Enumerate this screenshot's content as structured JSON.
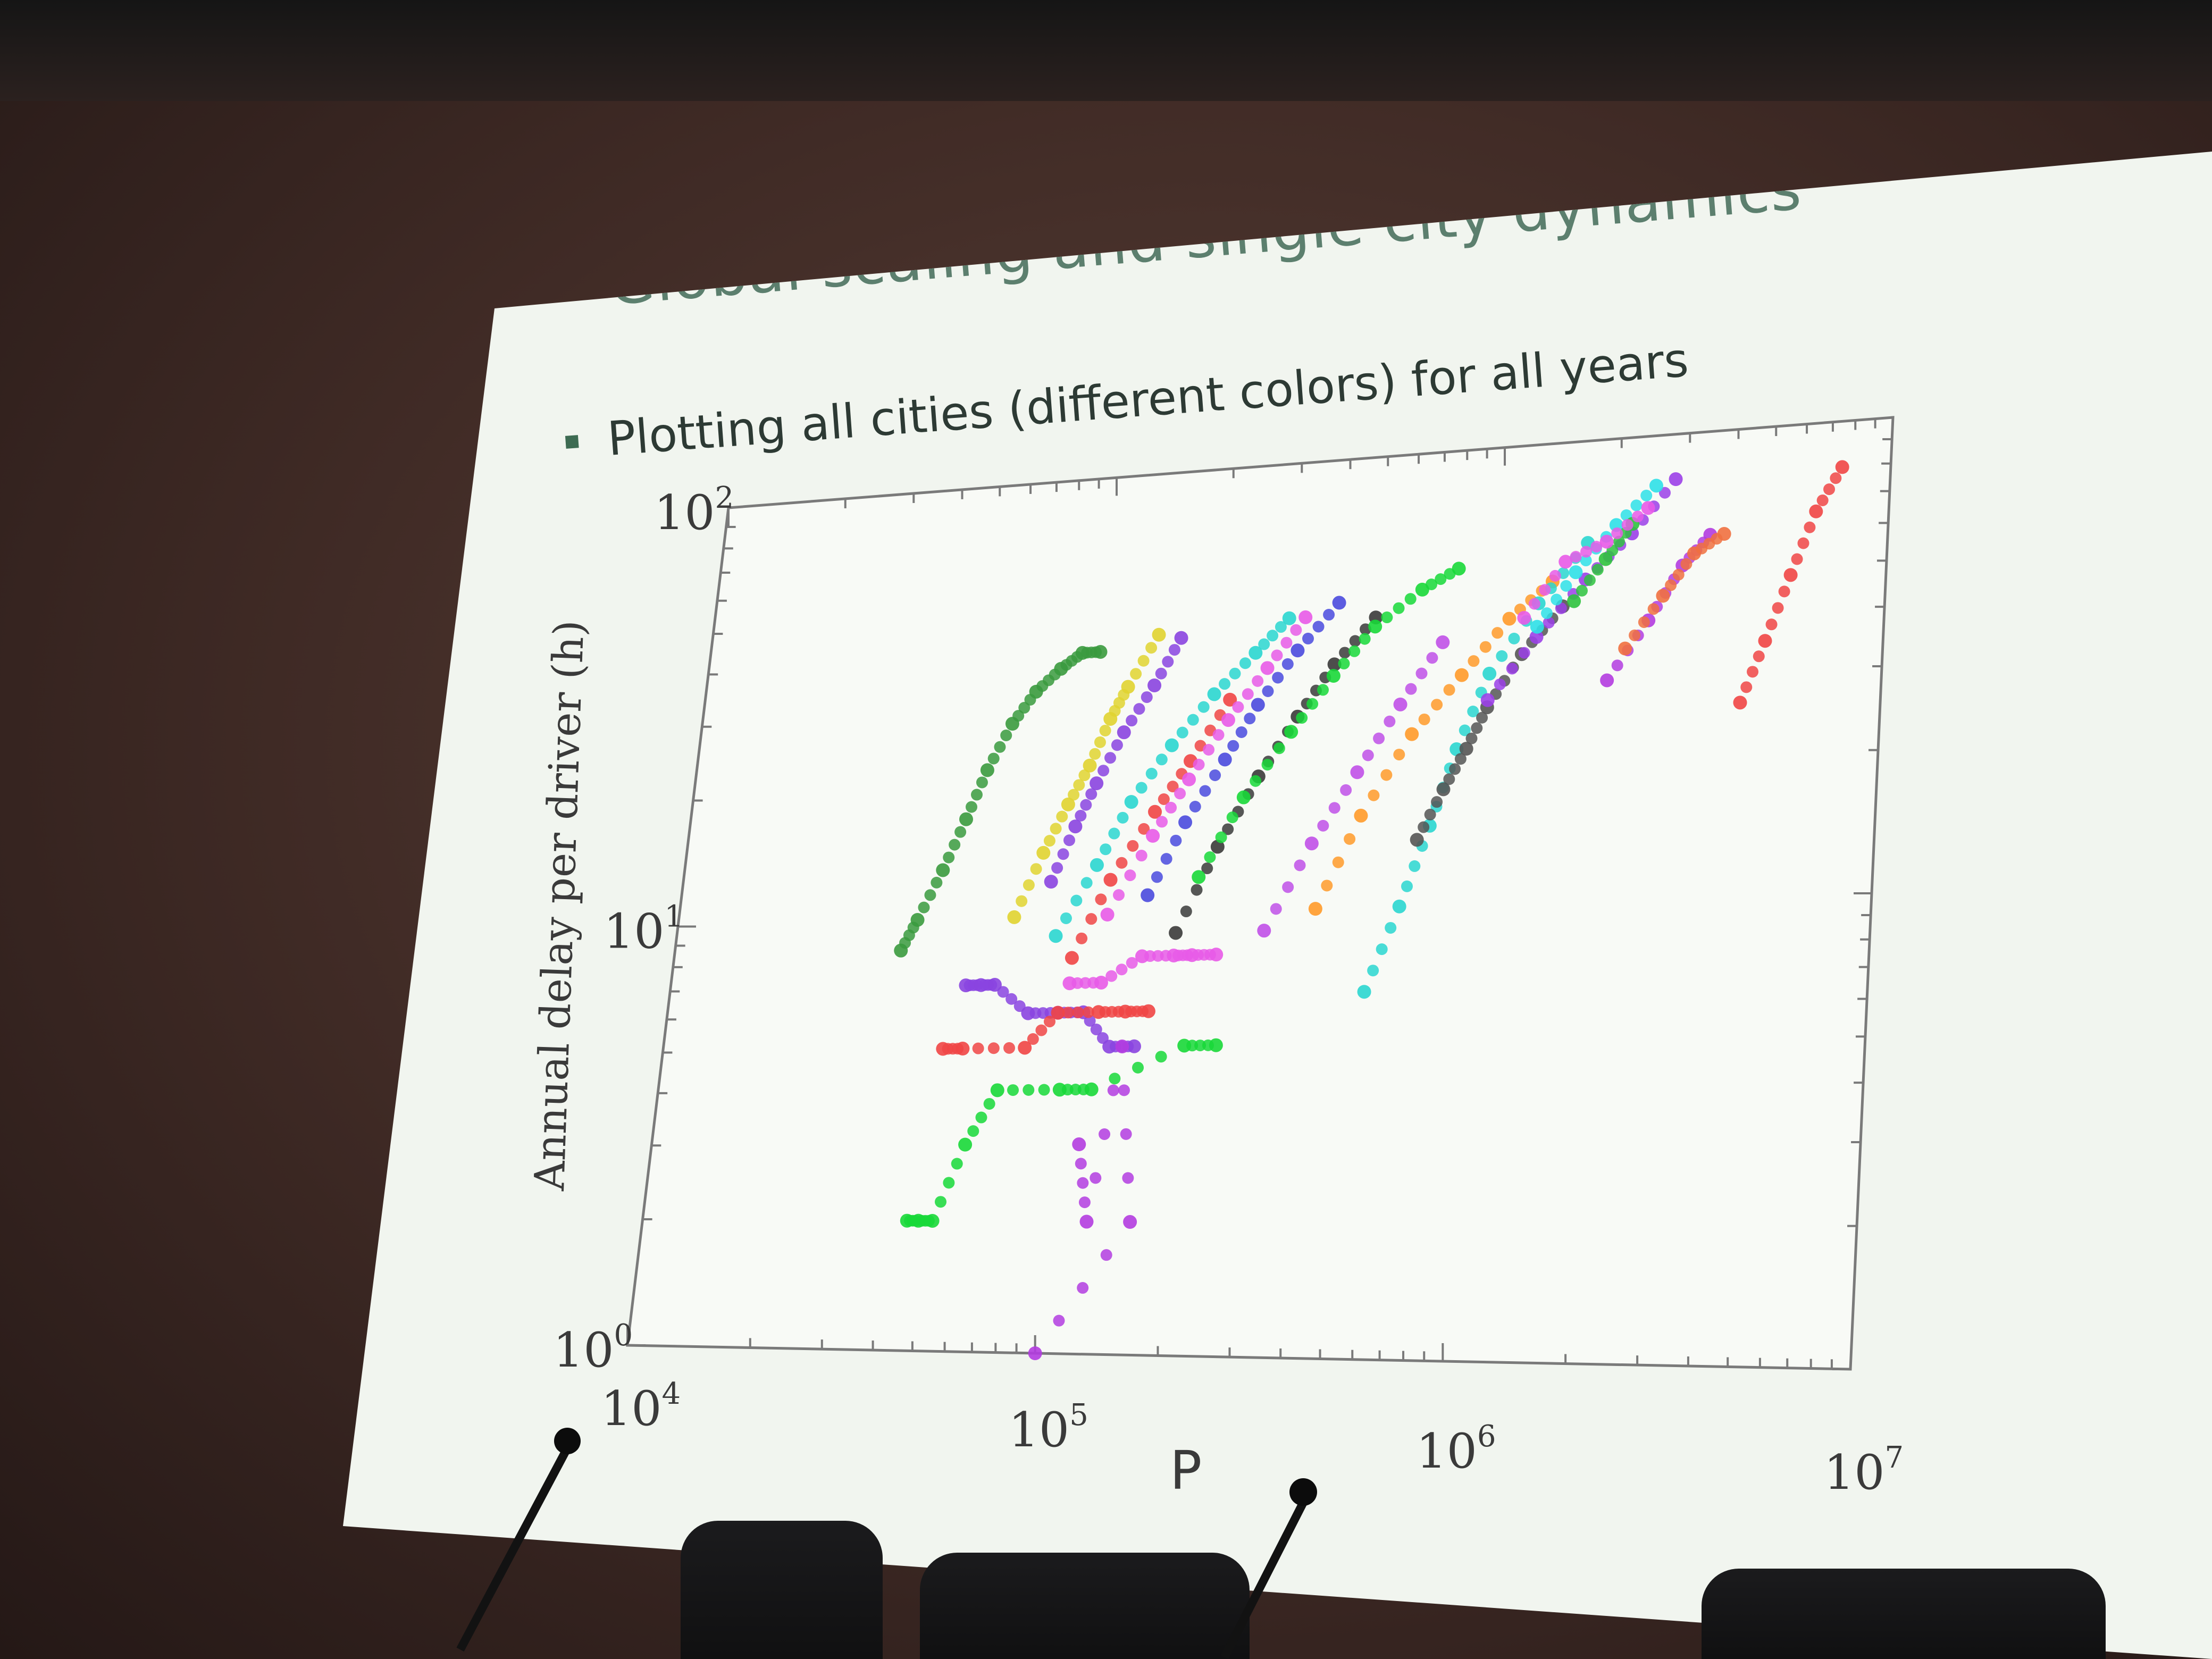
{
  "slide": {
    "title": "Global scaling and single city dynamics",
    "bullet": "Plotting all cities (different colors) for all years"
  },
  "chart_data": {
    "type": "scatter",
    "xscale": "log",
    "yscale": "log",
    "xlim": [
      10000,
      10000000
    ],
    "ylim": [
      1,
      100
    ],
    "xlabel": "P",
    "ylabel": "Annual delay per driver (h)",
    "xticks": [
      {
        "base": "10",
        "exp": "4"
      },
      {
        "base": "10",
        "exp": "5"
      },
      {
        "base": "10",
        "exp": "6"
      },
      {
        "base": "10",
        "exp": "7"
      }
    ],
    "yticks": [
      {
        "base": "10",
        "exp": "0"
      },
      {
        "base": "10",
        "exp": "1"
      },
      {
        "base": "10",
        "exp": "2"
      }
    ],
    "series": [
      {
        "color": "#3a9a3e",
        "x": [
          37000,
          40000,
          45000,
          50000,
          55000,
          62000,
          70000,
          80000,
          90000,
          100000
        ],
        "y": [
          8.5,
          10,
          13,
          17,
          22,
          28,
          33,
          37,
          40,
          40
        ]
      },
      {
        "color": "#e0d330",
        "x": [
          70000,
          80000,
          90000,
          100000,
          110000,
          120000,
          140000
        ],
        "y": [
          10,
          14,
          18,
          22,
          28,
          33,
          43
        ]
      },
      {
        "color": "#8a44e0",
        "x": [
          85000,
          95000,
          105000,
          120000,
          140000,
          160000
        ],
        "y": [
          12,
          16,
          20,
          26,
          33,
          42
        ]
      },
      {
        "color": "#2ad6d0",
        "x": [
          90000,
          110000,
          130000,
          160000,
          200000,
          250000,
          300000
        ],
        "y": [
          9,
          13,
          18,
          24,
          31,
          38,
          45
        ]
      },
      {
        "color": "#f04545",
        "x": [
          100000,
          120000,
          150000,
          180000,
          220000
        ],
        "y": [
          8,
          12,
          17,
          22,
          30
        ]
      },
      {
        "color": "#e85ae8",
        "x": [
          120000,
          150000,
          180000,
          220000,
          270000,
          330000
        ],
        "y": [
          10,
          15,
          20,
          27,
          35,
          45
        ]
      },
      {
        "color": "#4a4ade",
        "x": [
          150000,
          180000,
          220000,
          260000,
          320000,
          400000
        ],
        "y": [
          11,
          16,
          22,
          29,
          38,
          48
        ]
      },
      {
        "color": "#3a3a3a",
        "x": [
          180000,
          220000,
          270000,
          330000,
          400000,
          500000
        ],
        "y": [
          9,
          14,
          20,
          27,
          35,
          44
        ]
      },
      {
        "color": "#18d838",
        "x": [
          200000,
          250000,
          320000,
          400000,
          500000,
          650000,
          800000
        ],
        "y": [
          12,
          18,
          25,
          33,
          42,
          50,
          55
        ]
      },
      {
        "color": "#c050e8",
        "x": [
          300000,
          380000,
          480000,
          600000,
          750000
        ],
        "y": [
          9,
          14,
          20,
          28,
          38
        ]
      },
      {
        "color": "#ff9a2a",
        "x": [
          400000,
          500000,
          650000,
          850000,
          1100000,
          1400000
        ],
        "y": [
          10,
          16,
          24,
          32,
          42,
          50
        ]
      },
      {
        "color": "#2ad6d0",
        "x": [
          550000,
          650000,
          750000,
          850000,
          1000000,
          1300000,
          1700000
        ],
        "y": [
          6.5,
          10,
          15,
          22,
          32,
          45,
          60
        ]
      },
      {
        "color": "#555555",
        "x": [
          700000,
          800000,
          900000,
          1000000,
          1200000,
          1500000
        ],
        "y": [
          14,
          18,
          22,
          27,
          35,
          44
        ]
      },
      {
        "color": "#9b40e8",
        "x": [
          1000000,
          1300000,
          1700000,
          2200000,
          2800000
        ],
        "y": [
          28,
          38,
          50,
          62,
          80
        ]
      },
      {
        "color": "#2ee0e8",
        "x": [
          1300000,
          1600000,
          2000000,
          2500000
        ],
        "y": [
          40,
          52,
          65,
          78
        ]
      },
      {
        "color": "#f04545",
        "x": [
          4400000,
          5000000,
          5700000,
          6500000,
          7500000
        ],
        "y": [
          26,
          35,
          48,
          65,
          80
        ]
      },
      {
        "color": "#b33ce0",
        "x": [
          2000000,
          2500000,
          3000000,
          3500000
        ],
        "y": [
          30,
          40,
          52,
          60
        ]
      },
      {
        "color": "#f07040",
        "x": [
          2200000,
          2700000,
          3200000,
          3800000
        ],
        "y": [
          35,
          45,
          55,
          60
        ]
      },
      {
        "color": "#2ec23e",
        "x": [
          1600000,
          1900000,
          2200000
        ],
        "y": [
          45,
          55,
          65
        ]
      },
      {
        "color": "#e85ae8",
        "x": [
          1200000,
          1500000,
          1900000,
          2400000
        ],
        "y": [
          42,
          55,
          60,
          70
        ]
      }
    ],
    "low_delay_points": [
      {
        "color": "#8a44e0",
        "x": [
          55000,
          60000,
          65000,
          80000,
          95000,
          110000,
          130000,
          150000
        ],
        "y": [
          7,
          7,
          7,
          6,
          6,
          6,
          5,
          5
        ]
      },
      {
        "color": "#f04545",
        "x": [
          50000,
          56000,
          80000,
          95000,
          120000,
          140000,
          160000
        ],
        "y": [
          5,
          5,
          5,
          6,
          6,
          6,
          6
        ]
      },
      {
        "color": "#18d838",
        "x": [
          45000,
          48000,
          52000,
          60000,
          70000,
          100000,
          120000,
          200000,
          240000
        ],
        "y": [
          2,
          2,
          2,
          3,
          4,
          4,
          4,
          5,
          5
        ]
      },
      {
        "color": "#e85ae8",
        "x": [
          100000,
          120000,
          150000,
          180000,
          200000,
          230000
        ],
        "y": [
          7,
          7,
          8,
          8,
          8,
          8
        ]
      },
      {
        "color": "#b33ce0",
        "x": [
          115000,
          125000,
          140000,
          160000,
          100000
        ],
        "y": [
          3,
          2,
          5,
          2,
          1
        ]
      }
    ]
  }
}
